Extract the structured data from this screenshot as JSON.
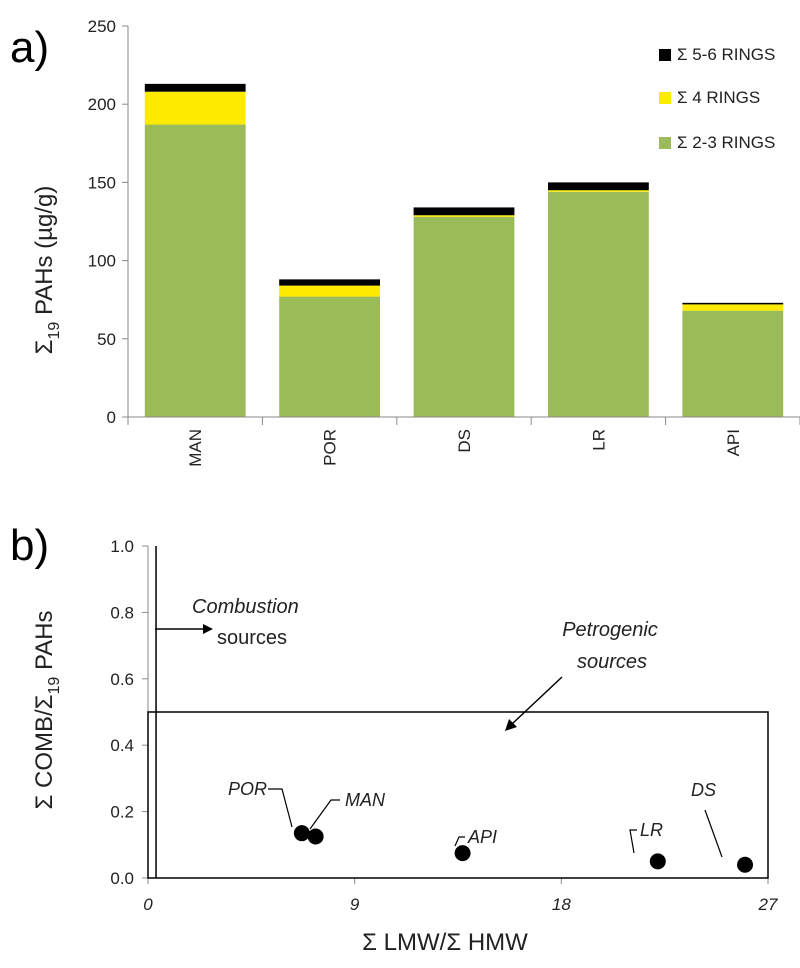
{
  "chart_data": [
    {
      "panel_label": "a)",
      "type": "bar",
      "stacked": true,
      "categories": [
        "MAN",
        "POR",
        "DS",
        "LR",
        "API"
      ],
      "series": [
        {
          "name": "Σ 2-3 RINGS",
          "color": "#9bbb59",
          "values": [
            187,
            77,
            128,
            144,
            68
          ]
        },
        {
          "name": "Σ 4 RINGS",
          "color": "#ffeb00",
          "values": [
            21,
            7,
            1,
            1,
            4
          ]
        },
        {
          "name": "Σ 5-6 RINGS",
          "color": "#000000",
          "values": [
            5,
            4,
            5,
            5,
            1
          ]
        }
      ],
      "ylabel": {
        "main": "Σ",
        "sub": "19",
        "rest": " PAHs (µg/g)"
      },
      "ylim": [
        0,
        250
      ],
      "yticks": [
        0,
        50,
        100,
        150,
        200,
        250
      ],
      "legend_placement": "top-right",
      "grid": false
    },
    {
      "panel_label": "b)",
      "type": "scatter",
      "xlabel": "Σ LMW/Σ HMW",
      "ylabel": {
        "main": "Σ COMB/Σ",
        "sub": "19",
        "rest": " PAHs"
      },
      "xlim": [
        0,
        27
      ],
      "ylim": [
        0,
        1.0
      ],
      "xticks": [
        "0",
        "9",
        "18",
        "27"
      ],
      "yticks": [
        "0.0",
        "0.2",
        "0.4",
        "0.6",
        "0.8",
        "1.0"
      ],
      "points": [
        {
          "label": "POR",
          "x": 6.7,
          "y": 0.135
        },
        {
          "label": "MAN",
          "x": 7.3,
          "y": 0.125
        },
        {
          "label": "API",
          "x": 13.7,
          "y": 0.075
        },
        {
          "label": "LR",
          "x": 22.2,
          "y": 0.05
        },
        {
          "label": "DS",
          "x": 26.0,
          "y": 0.04
        }
      ],
      "annotations": [
        {
          "lines": [
            "Combustion",
            "sources"
          ]
        },
        {
          "lines": [
            "Petrogenic",
            "sources"
          ]
        }
      ],
      "grid": false
    }
  ]
}
